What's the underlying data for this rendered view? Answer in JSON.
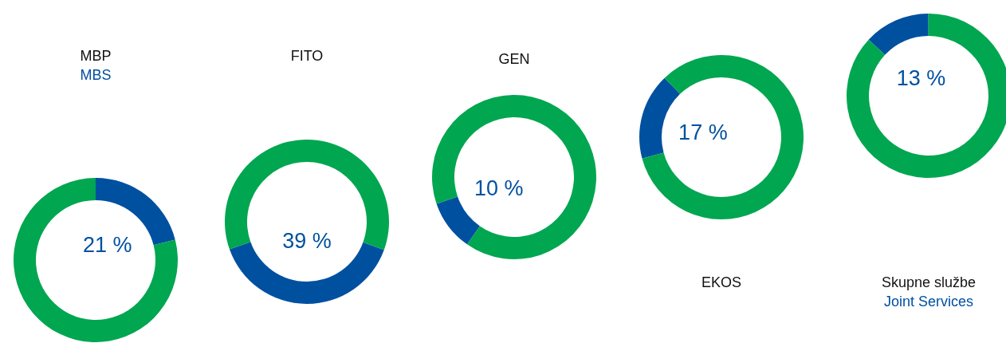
{
  "chart_data": [
    {
      "type": "donut",
      "title": "MBP",
      "subtitle": "MBS",
      "categories": [
        null,
        null
      ],
      "values": [
        21,
        79
      ],
      "colors": [
        "#0050a0",
        "#00a650"
      ],
      "value_labels": [
        "21 %",
        null
      ]
    },
    {
      "type": "donut",
      "title": "FITO",
      "categories": [
        null,
        null
      ],
      "values": [
        39,
        61
      ],
      "colors": [
        "#0050a0",
        "#00a650"
      ],
      "value_labels": [
        "39 %",
        null
      ]
    },
    {
      "type": "donut",
      "title": "GEN",
      "categories": [
        null,
        null
      ],
      "values": [
        10,
        90
      ],
      "colors": [
        "#0050a0",
        "#00a650"
      ],
      "value_labels": [
        "10 %",
        null
      ]
    },
    {
      "type": "donut",
      "title": "EKOS",
      "categories": [
        null,
        null
      ],
      "values": [
        17,
        83
      ],
      "colors": [
        "#0050a0",
        "#00a650"
      ],
      "value_labels": [
        "17 %",
        null
      ]
    },
    {
      "type": "donut",
      "title": "Skupne službe",
      "subtitle": "Joint Services",
      "categories": [
        null,
        null
      ],
      "values": [
        13,
        87
      ],
      "colors": [
        "#0050a0",
        "#00a650"
      ],
      "value_labels": [
        "13 %",
        null
      ]
    }
  ]
}
